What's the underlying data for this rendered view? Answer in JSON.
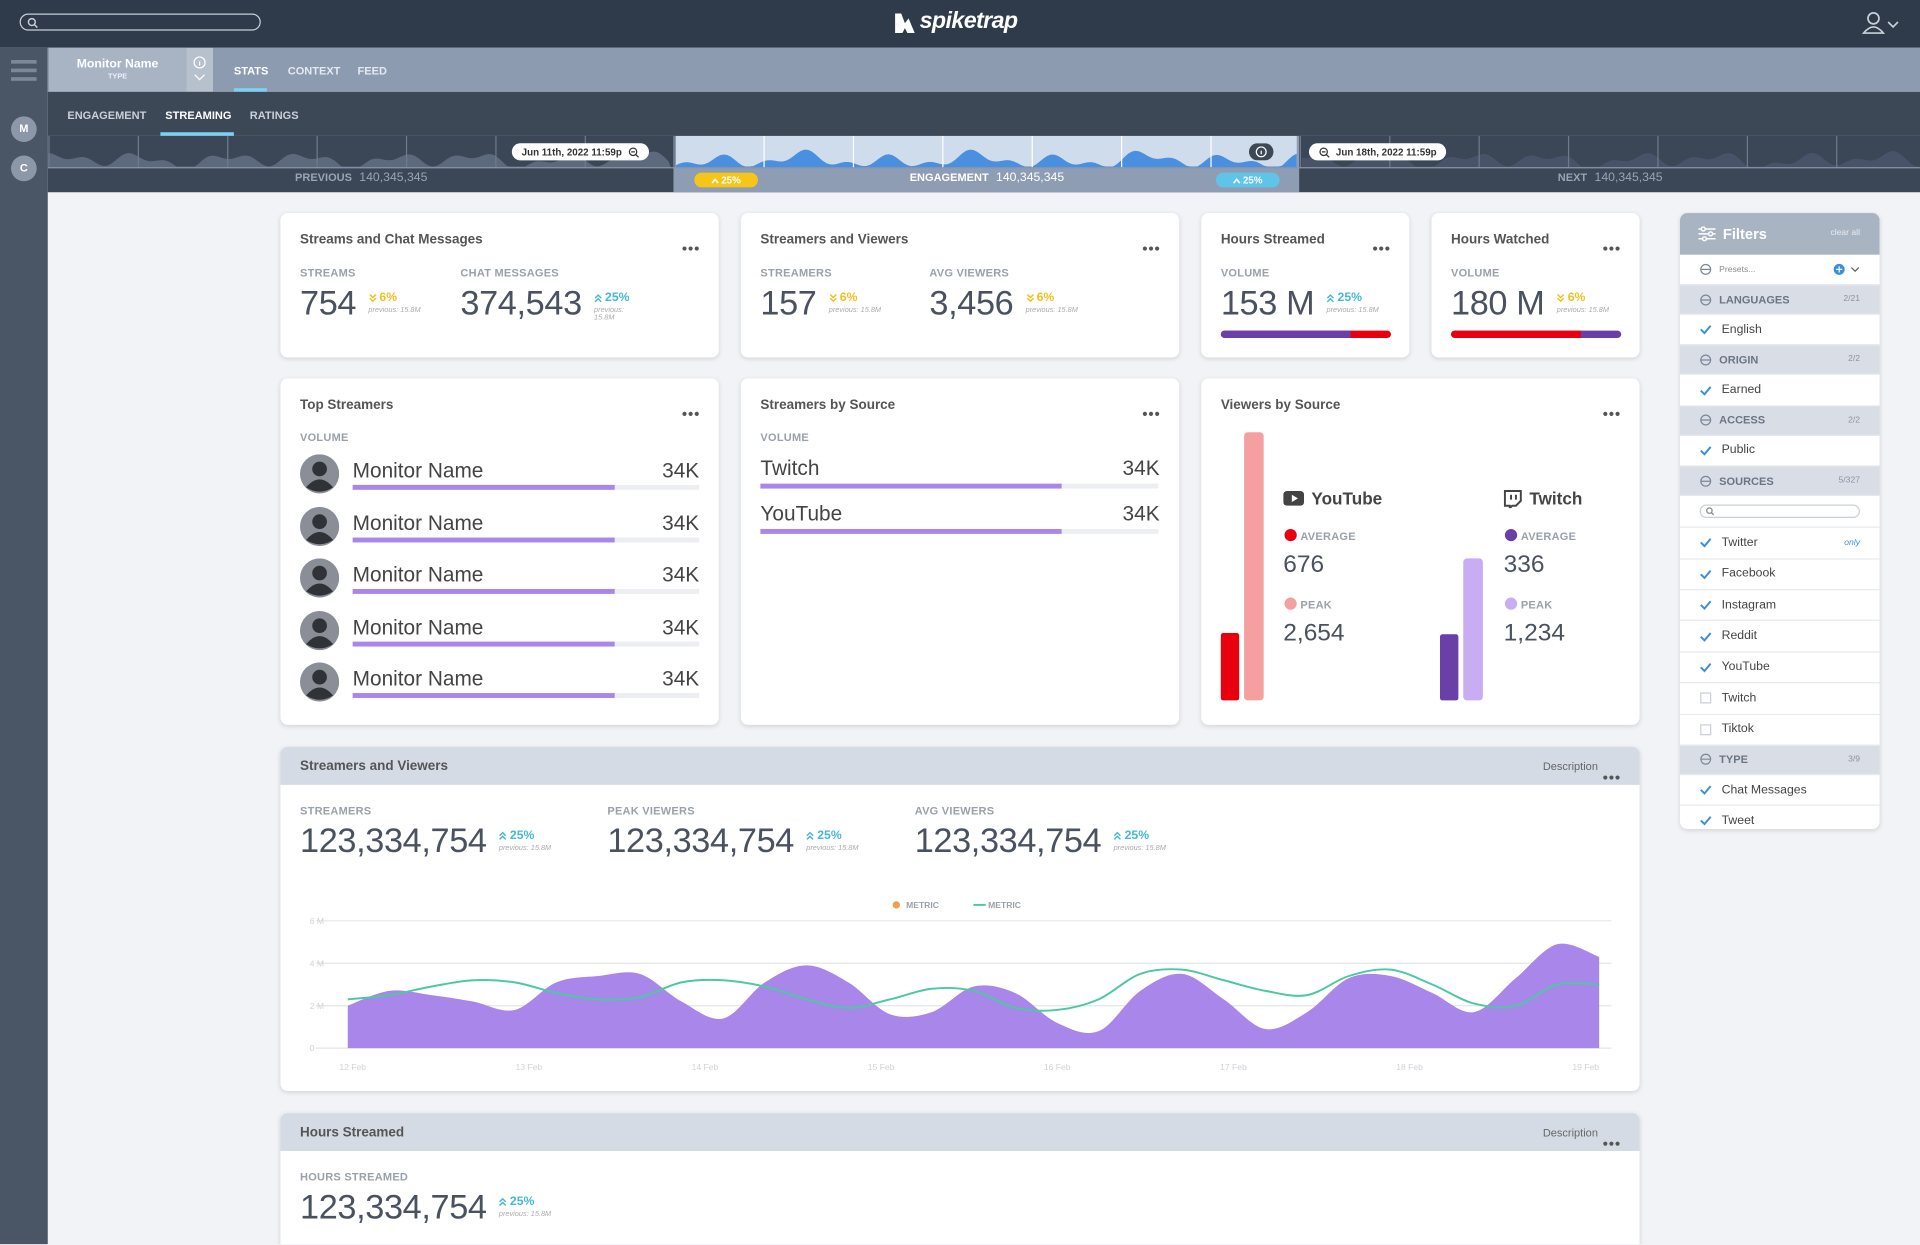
{
  "header": {
    "brand": "spiketrap"
  },
  "sidebar": {
    "avatars": [
      "M",
      "C"
    ]
  },
  "monitor": {
    "name": "Monitor Name",
    "type": "TYPE"
  },
  "tabs": {
    "items": [
      "STATS",
      "CONTEXT",
      "FEED"
    ],
    "active": 0
  },
  "subtabs": {
    "items": [
      "ENGAGEMENT",
      "STREAMING",
      "RATINGS"
    ],
    "active": 1
  },
  "timeline": {
    "start_date": "Jun 11th, 2022 11:59p",
    "end_date": "Jun 18th, 2022 11:59p",
    "previous_label": "PREVIOUS",
    "previous_value": "140,345,345",
    "current_label": "ENGAGEMENT",
    "current_value": "140,345,345",
    "next_label": "NEXT",
    "next_value": "140,345,345",
    "left_change": "25%",
    "right_change": "25%"
  },
  "stat_cards": [
    {
      "title": "Streams and Chat Messages",
      "metrics": [
        {
          "label": "STREAMS",
          "value": "754",
          "change": "6%",
          "direction": "down",
          "previous": "previous: 15.8M"
        },
        {
          "label": "CHAT MESSAGES",
          "value": "374,543",
          "change": "25%",
          "direction": "up",
          "previous": "previous: 15.8M"
        }
      ]
    },
    {
      "title": "Streamers and Viewers",
      "metrics": [
        {
          "label": "STREAMERS",
          "value": "157",
          "change": "6%",
          "direction": "down",
          "previous": "previous: 15.8M"
        },
        {
          "label": "AVG VIEWERS",
          "value": "3,456",
          "change": "6%",
          "direction": "down",
          "previous": "previous: 15.8M"
        }
      ]
    },
    {
      "title": "Hours Streamed",
      "metrics": [
        {
          "label": "VOLUME",
          "value": "153 M",
          "change": "25%",
          "direction": "up",
          "previous": "previous: 15.8M"
        }
      ]
    },
    {
      "title": "Hours Watched",
      "metrics": [
        {
          "label": "VOLUME",
          "value": "180 M",
          "change": "6%",
          "direction": "down",
          "previous": "previous: 15.8M"
        }
      ]
    }
  ],
  "top_streamers": {
    "title": "Top Streamers",
    "label": "VOLUME",
    "rows": [
      {
        "name": "Monitor Name",
        "value": "34K"
      },
      {
        "name": "Monitor Name",
        "value": "34K"
      },
      {
        "name": "Monitor Name",
        "value": "34K"
      },
      {
        "name": "Monitor Name",
        "value": "34K"
      },
      {
        "name": "Monitor Name",
        "value": "34K"
      }
    ]
  },
  "streamers_by_source": {
    "title": "Streamers by Source",
    "label": "VOLUME",
    "rows": [
      {
        "name": "Twitch",
        "value": "34K"
      },
      {
        "name": "YouTube",
        "value": "34K"
      }
    ]
  },
  "viewers_by_source": {
    "title": "Viewers by Source",
    "sources": [
      {
        "name": "YouTube",
        "average_label": "AVERAGE",
        "average": "676",
        "peak_label": "PEAK",
        "peak": "2,654",
        "color": "#e8000f",
        "peak_color": "#f4a0a0"
      },
      {
        "name": "Twitch",
        "average_label": "AVERAGE",
        "average": "336",
        "peak_label": "PEAK",
        "peak": "1,234",
        "color": "#6a3fa8",
        "peak_color": "#c8adf2"
      }
    ]
  },
  "streamers_viewers_chart": {
    "title": "Streamers and Viewers",
    "description": "Description",
    "metrics": [
      {
        "label": "STREAMERS",
        "value": "123,334,754",
        "change": "25%",
        "direction": "up",
        "previous": "previous: 15.8M"
      },
      {
        "label": "PEAK VIEWERS",
        "value": "123,334,754",
        "change": "25%",
        "direction": "up",
        "previous": "previous: 15.8M"
      },
      {
        "label": "AVG VIEWERS",
        "value": "123,334,754",
        "change": "25%",
        "direction": "up",
        "previous": "previous: 15.8M"
      }
    ],
    "chart_data": {
      "type": "line",
      "xticks": [
        "12 Feb",
        "13 Feb",
        "14 Feb",
        "15 Feb",
        "16 Feb",
        "17 Feb",
        "18 Feb",
        "19 Feb"
      ],
      "ylim": [
        0,
        6000000
      ],
      "yticks": [
        0,
        {
          "value": 2000000,
          "label": "2 M"
        },
        {
          "value": 4000000,
          "label": "4 M"
        },
        {
          "value": 6000000,
          "label": "6 M"
        }
      ],
      "grid": true,
      "series": [
        {
          "name": "METRIC",
          "kind": "area",
          "color": "#a986ea",
          "marker_color": "#f0a04b",
          "values": [
            2000000,
            2700000,
            2500000,
            2200000,
            1800000,
            3100000,
            3400000,
            3500000,
            2200000,
            1400000,
            3100000,
            3900000,
            3100000,
            1600000,
            1700000,
            2900000,
            2600000,
            1200000,
            800000,
            2700000,
            3500000,
            2300000,
            900000,
            1700000,
            3300000,
            3400000,
            2600000,
            1700000,
            3300000,
            4900000,
            4300000
          ]
        },
        {
          "name": "METRIC",
          "kind": "line",
          "color": "#4cc9a0",
          "values": [
            2300000,
            2500000,
            2900000,
            3200000,
            3100000,
            2600000,
            2300000,
            2400000,
            3100000,
            3200000,
            2900000,
            2300000,
            1900000,
            2300000,
            2800000,
            2700000,
            1900000,
            1800000,
            2300000,
            3500000,
            3700000,
            3200000,
            2700000,
            2500000,
            3400000,
            3700000,
            3000000,
            2100000,
            2000000,
            3000000,
            3000000
          ]
        }
      ]
    }
  },
  "hours_streamed": {
    "title": "Hours Streamed",
    "description": "Description",
    "metrics": [
      {
        "label": "HOURS STREAMED",
        "value": "123,334,754",
        "change": "25%",
        "direction": "up",
        "previous": "previous: 15.8M"
      }
    ]
  },
  "filters": {
    "title": "Filters",
    "clear": "clear all",
    "presets": "Presets...",
    "sections": [
      {
        "name": "LANGUAGES",
        "count": "2/21",
        "items": [
          {
            "label": "English",
            "checked": true
          }
        ]
      },
      {
        "name": "ORIGIN",
        "count": "2/2",
        "items": [
          {
            "label": "Earned",
            "checked": true
          }
        ]
      },
      {
        "name": "ACCESS",
        "count": "2/2",
        "items": [
          {
            "label": "Public",
            "checked": true
          }
        ]
      },
      {
        "name": "SOURCES",
        "count": "5/327",
        "search": true,
        "items": [
          {
            "label": "Twitter",
            "checked": true,
            "tag": "only"
          },
          {
            "label": "Facebook",
            "checked": true
          },
          {
            "label": "Instagram",
            "checked": true
          },
          {
            "label": "Reddit",
            "checked": true
          },
          {
            "label": "YouTube",
            "checked": true
          },
          {
            "label": "Twitch",
            "checked": false
          },
          {
            "label": "Tiktok",
            "checked": false
          }
        ]
      },
      {
        "name": "TYPE",
        "count": "3/9",
        "items": [
          {
            "label": "Chat Messages",
            "checked": true
          },
          {
            "label": "Tweet",
            "checked": true
          }
        ]
      }
    ]
  }
}
